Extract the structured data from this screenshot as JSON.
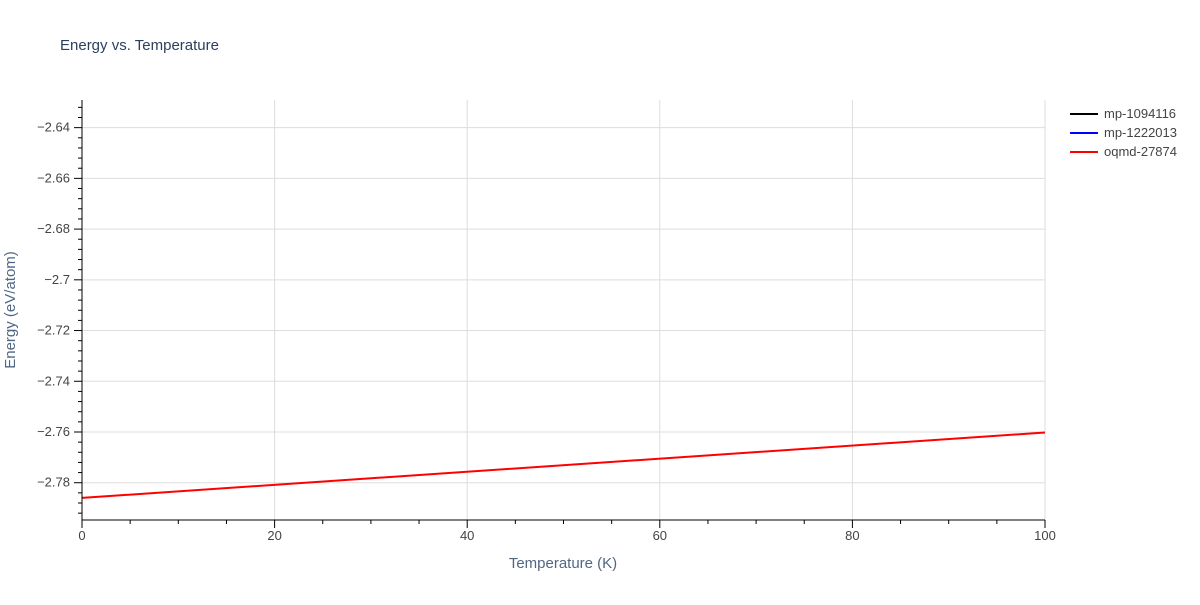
{
  "chart_data": {
    "type": "line",
    "title": "Energy vs. Temperature",
    "xlabel": "Temperature (K)",
    "ylabel": "Energy (eV/atom)",
    "xlim": [
      0,
      100
    ],
    "ylim": [
      -2.7947,
      -2.6291
    ],
    "x_ticks": [
      0,
      20,
      40,
      60,
      80,
      100
    ],
    "x_tick_labels": [
      "0",
      "20",
      "40",
      "60",
      "80",
      "100"
    ],
    "y_ticks": [
      -2.78,
      -2.76,
      -2.74,
      -2.72,
      -2.7,
      -2.68,
      -2.66,
      -2.64
    ],
    "y_tick_labels": [
      "−2.78",
      "−2.76",
      "−2.74",
      "−2.72",
      "−2.7",
      "−2.68",
      "−2.66",
      "−2.64"
    ],
    "grid": true,
    "legend_position": "top-right",
    "series": [
      {
        "name": "mp-1094116",
        "color": "#000000",
        "x": [],
        "y": []
      },
      {
        "name": "mp-1222013",
        "color": "#0000ff",
        "x": [],
        "y": []
      },
      {
        "name": "oqmd-27874",
        "color": "#ff0000",
        "x": [
          0,
          100
        ],
        "y": [
          -2.786,
          -2.7602
        ]
      }
    ]
  }
}
